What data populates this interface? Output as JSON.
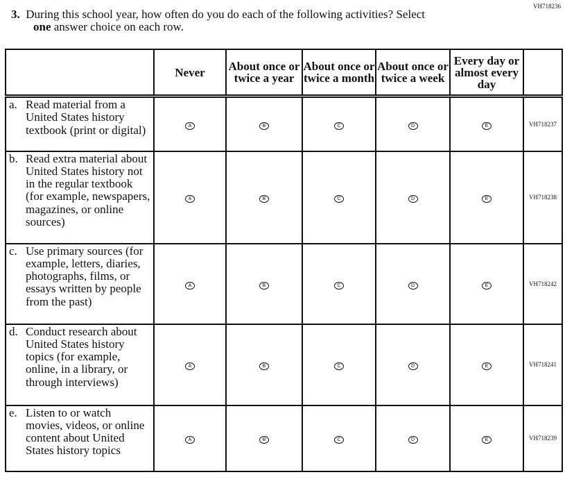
{
  "item_id": "VH718236",
  "question": {
    "number": "3.",
    "text_line1": "During this school year, how often do you do each of the following activities? Select",
    "bold_word": "one",
    "text_line2_rest": " answer choice on each row."
  },
  "columns": [
    "Never",
    "About once or twice a year",
    "About once or twice a month",
    "About once or twice a week",
    "Every day or almost every day"
  ],
  "choice_letters": [
    "A",
    "B",
    "C",
    "D",
    "E"
  ],
  "rows": [
    {
      "letter": "a.",
      "text": "Read material from a United States history textbook (print or digital)",
      "id": "VH718237"
    },
    {
      "letter": "b.",
      "text": "Read extra material about United States history not in the regular textbook (for example, newspapers, magazines, or online sources)",
      "id": "VH718238"
    },
    {
      "letter": "c.",
      "text": "Use primary sources (for example, letters, diaries, photographs, films, or essays written by people from the past)",
      "id": "VH718242"
    },
    {
      "letter": "d.",
      "text": "Conduct research about United States history topics (for example, online, in a library, or through interviews)",
      "id": "VH718241"
    },
    {
      "letter": "e.",
      "text": "Listen to or watch movies, videos, or online content about United States history topics",
      "id": "VH718239"
    }
  ]
}
